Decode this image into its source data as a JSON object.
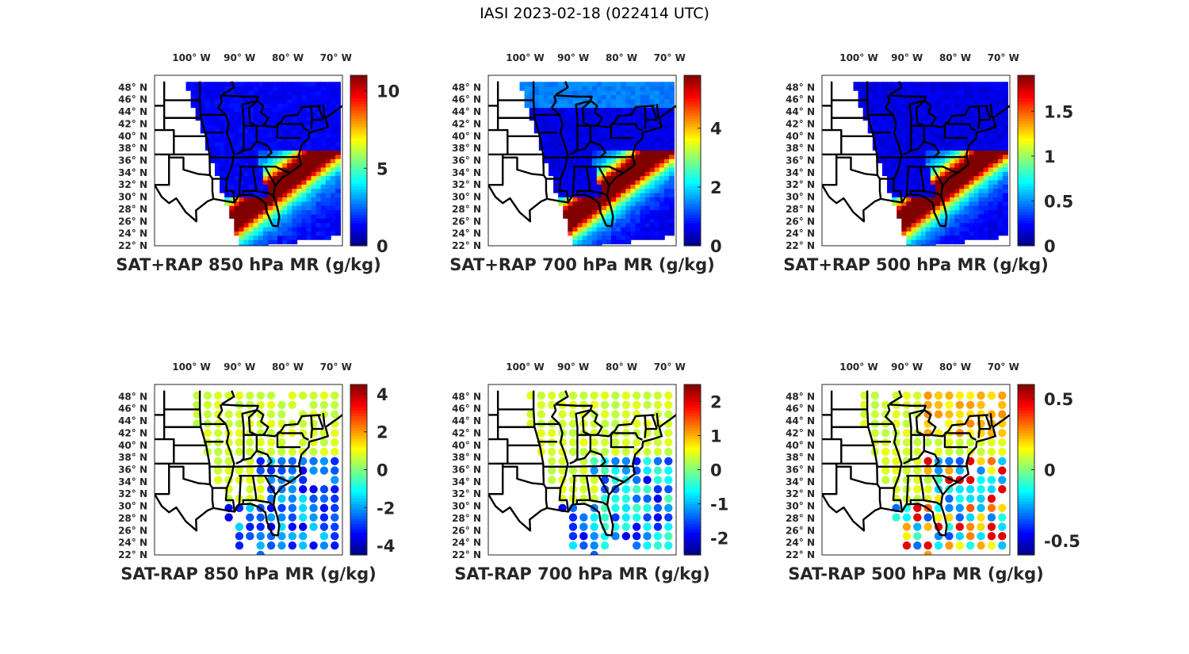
{
  "figure_title": "IASI 2023-02-18 (022414 UTC)",
  "chart_data": [
    {
      "type": "heatmap",
      "title": "SAT+RAP 850 hPa MR (g/kg)",
      "field": "sum",
      "x_ticks": [
        "100° W",
        "90° W",
        "80° W",
        "70° W"
      ],
      "y_ticks": [
        "48° N",
        "46° N",
        "44° N",
        "42° N",
        "40° N",
        "38° N",
        "36° N",
        "34° N",
        "32° N",
        "30° N",
        "28° N",
        "26° N",
        "24° N",
        "22° N"
      ],
      "colorbar": {
        "colormap": "jet",
        "range": [
          0,
          11
        ],
        "ticks": [
          0,
          5,
          10
        ],
        "labels": [
          "0",
          "5",
          "10"
        ]
      },
      "description": "Dry (blue, ~1 g/kg) over continental US; moist band (~8-10 g/kg) along Gulf coast and offshore Atlantic SE"
    },
    {
      "type": "heatmap",
      "title": "SAT+RAP 700 hPa MR (g/kg)",
      "field": "sum",
      "x_ticks": [
        "100° W",
        "90° W",
        "80° W",
        "70° W"
      ],
      "y_ticks": [
        "48° N",
        "46° N",
        "44° N",
        "42° N",
        "40° N",
        "38° N",
        "36° N",
        "34° N",
        "32° N",
        "30° N",
        "28° N",
        "26° N",
        "24° N",
        "22° N"
      ],
      "colorbar": {
        "colormap": "jet",
        "range": [
          0,
          5.8
        ],
        "ticks": [
          0,
          2,
          4
        ],
        "labels": [
          "0",
          "2",
          "4"
        ]
      },
      "description": "Dry over land (~0.5 g/kg); moist band (~5 g/kg) off SE coast"
    },
    {
      "type": "heatmap",
      "title": "SAT+RAP 500 hPa MR (g/kg)",
      "field": "sum",
      "x_ticks": [
        "100° W",
        "90° W",
        "80° W",
        "70° W"
      ],
      "y_ticks": [
        "48° N",
        "46° N",
        "44° N",
        "42° N",
        "40° N",
        "38° N",
        "36° N",
        "34° N",
        "32° N",
        "30° N",
        "28° N",
        "26° N",
        "24° N",
        "22° N"
      ],
      "colorbar": {
        "colormap": "jet",
        "range": [
          0,
          1.9
        ],
        "ticks": [
          0,
          0.5,
          1,
          1.5
        ],
        "labels": [
          "0",
          "0.5",
          "1",
          "1.5"
        ]
      },
      "description": "Dry over land (~0.2 g/kg); moist band (~1.8 g/kg) off SE coast"
    },
    {
      "type": "heatmap",
      "title": "SAT-RAP 850 hPa MR (g/kg)",
      "field": "difference",
      "x_ticks": [
        "100° W",
        "90° W",
        "80° W",
        "70° W"
      ],
      "y_ticks": [
        "48° N",
        "46° N",
        "44° N",
        "42° N",
        "40° N",
        "38° N",
        "36° N",
        "34° N",
        "32° N",
        "30° N",
        "28° N",
        "26° N",
        "24° N",
        "22° N"
      ],
      "colorbar": {
        "colormap": "jet",
        "range": [
          -4.5,
          4.5
        ],
        "ticks": [
          -4,
          -2,
          0,
          2,
          4
        ],
        "labels": [
          "-4",
          "-2",
          "0",
          "2",
          "4"
        ]
      },
      "description": "Near zero over land; negative (-3 to -4) over SE Atlantic and Florida"
    },
    {
      "type": "heatmap",
      "title": "SAT-RAP 700 hPa MR (g/kg)",
      "field": "difference",
      "x_ticks": [
        "100° W",
        "90° W",
        "80° W",
        "70° W"
      ],
      "y_ticks": [
        "48° N",
        "46° N",
        "44° N",
        "42° N",
        "40° N",
        "38° N",
        "36° N",
        "34° N",
        "32° N",
        "30° N",
        "28° N",
        "26° N",
        "24° N",
        "22° N"
      ],
      "colorbar": {
        "colormap": "jet",
        "range": [
          -2.5,
          2.5
        ],
        "ticks": [
          -2,
          -1,
          0,
          1,
          2
        ],
        "labels": [
          "-2",
          "-1",
          "0",
          "1",
          "2"
        ]
      },
      "description": "Near zero over land; negative (-2) patches along SE coast"
    },
    {
      "type": "heatmap",
      "title": "SAT-RAP 500 hPa MR (g/kg)",
      "field": "difference",
      "x_ticks": [
        "100° W",
        "90° W",
        "80° W",
        "70° W"
      ],
      "y_ticks": [
        "48° N",
        "46° N",
        "44° N",
        "42° N",
        "40° N",
        "38° N",
        "36° N",
        "34° N",
        "32° N",
        "30° N",
        "28° N",
        "26° N",
        "24° N",
        "22° N"
      ],
      "colorbar": {
        "colormap": "jet",
        "range": [
          -0.6,
          0.6
        ],
        "ticks": [
          -0.5,
          0,
          0.5
        ],
        "labels": [
          "-0.5",
          "0",
          "0.5"
        ]
      },
      "description": "Near zero over land; mixed positive (0.5) and negative (-0.5) over Atlantic / Florida"
    }
  ]
}
